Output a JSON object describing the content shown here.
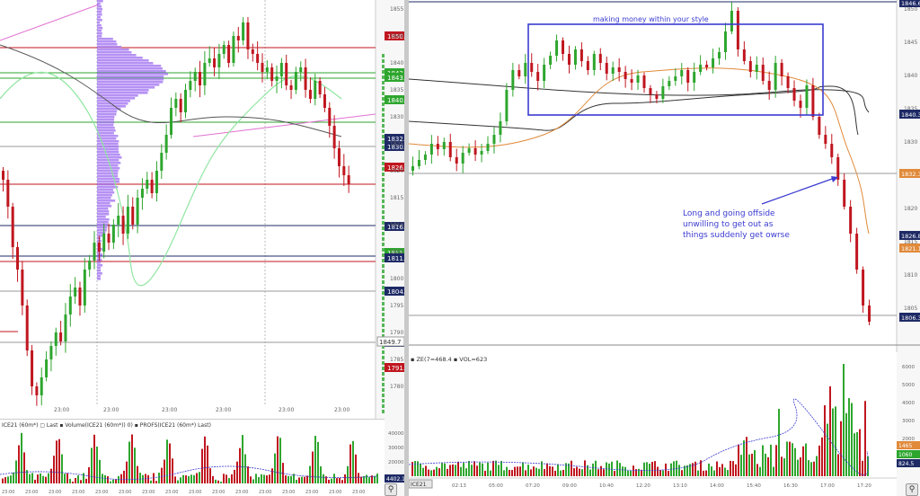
{
  "colors": {
    "up": "#2ea62e",
    "down": "#c0161f",
    "resistance": "#c0161f",
    "support_green": "#2ea62e",
    "level_gray": "#9a9a9a",
    "profile": "#9d6cf0",
    "annotation": "#3b3bd1",
    "vwap": "#555555",
    "ema_green": "#8fe6a0",
    "ma_orange": "#e08a3a"
  },
  "left_chart": {
    "price_labels": [
      {
        "text": "1850.3",
        "color": "#c0161f"
      },
      {
        "text": "1843.7",
        "color": "#2ea62e"
      },
      {
        "text": "1843.3",
        "color": "#2ea62e"
      },
      {
        "text": "1840.5",
        "color": "#2ea62e"
      },
      {
        "text": "1832.4",
        "color": "#1e2a66"
      },
      {
        "text": "1830.6",
        "color": "#1e2a66"
      },
      {
        "text": "1826.3",
        "color": "#c0161f"
      },
      {
        "text": "1816.5",
        "color": "#1e2a66"
      },
      {
        "text": "1811.9",
        "color": "#2ea62e"
      },
      {
        "text": "1811.0",
        "color": "#1e2a66"
      },
      {
        "text": "1804.9",
        "color": "#1e2a66"
      },
      {
        "text": "1798.1",
        "color": "#1e2a66"
      },
      {
        "text": "1791.4",
        "color": "#c0161f"
      }
    ],
    "axis_ticks": [
      "1855",
      "1845",
      "1840",
      "1835",
      "1830",
      "1825",
      "1820",
      "1815",
      "1810",
      "1805",
      "1800",
      "1795",
      "1790",
      "1785",
      "1780"
    ],
    "time_ticks": [
      "23:00",
      "23:00",
      "23:00",
      "23:00",
      "23:00",
      "23:00"
    ],
    "cursor_readout": "1849.7",
    "volume_legend": "ICE21 (60m*) ▢ Last  ▪ Volume(ICE21 (60m*)) 0)  ▪ PROFS(ICE21 (60m*) Last)",
    "volume_axis": [
      "40000",
      "30000",
      "20000",
      "10000"
    ],
    "volume_last": "4402.1",
    "volume_time_ticks": [
      "23:00",
      "23:00",
      "23:00",
      "23:00",
      "23:00",
      "23:00",
      "23:00",
      "23:00",
      "23:00",
      "23:00",
      "23:00",
      "23:00",
      "23:00",
      "23:00",
      "23:00",
      "23:00"
    ]
  },
  "right_chart": {
    "box_label": "making money within your style",
    "arrow_label": "Long and going offside\nunwilling to get out as\nthings suddenly get owrse",
    "price_labels": [
      {
        "text": "1846.6",
        "color": "#1e2a66"
      },
      {
        "text": "1840.3",
        "color": "#1e2a66"
      },
      {
        "text": "1832.3",
        "color": "#e08a3a"
      },
      {
        "text": "1826.8",
        "color": "#1e2a66"
      },
      {
        "text": "1821.1",
        "color": "#e08a3a"
      },
      {
        "text": "1806.3",
        "color": "#1e2a66"
      }
    ],
    "axis_ticks": [
      "1850",
      "1845",
      "1840",
      "1835",
      "1830",
      "1825",
      "1820",
      "1815",
      "1810",
      "1805"
    ],
    "time_ticks": [
      "05:00",
      "06:00",
      "07:00",
      "08:00",
      "09:00",
      "10:00",
      "11:00",
      "12:00",
      "13:00",
      "14:00",
      "15:00",
      "16:00",
      "17:00"
    ],
    "volume_legend": "▪ ZE(7=468.4 ▪ VOL=623",
    "volume_axis": [
      "6000",
      "5000",
      "4000",
      "3000",
      "2000",
      "1000"
    ],
    "volume_labels": [
      "1465",
      "1060",
      "824.5"
    ],
    "volume_time_ticks": [
      "02:13",
      "05:00",
      "07:20",
      "09:00",
      "10:40",
      "12:20",
      "13:10",
      "14:00",
      "15:40",
      "16:30",
      "17:00",
      "17:20"
    ],
    "symbol": "ICE21"
  }
}
